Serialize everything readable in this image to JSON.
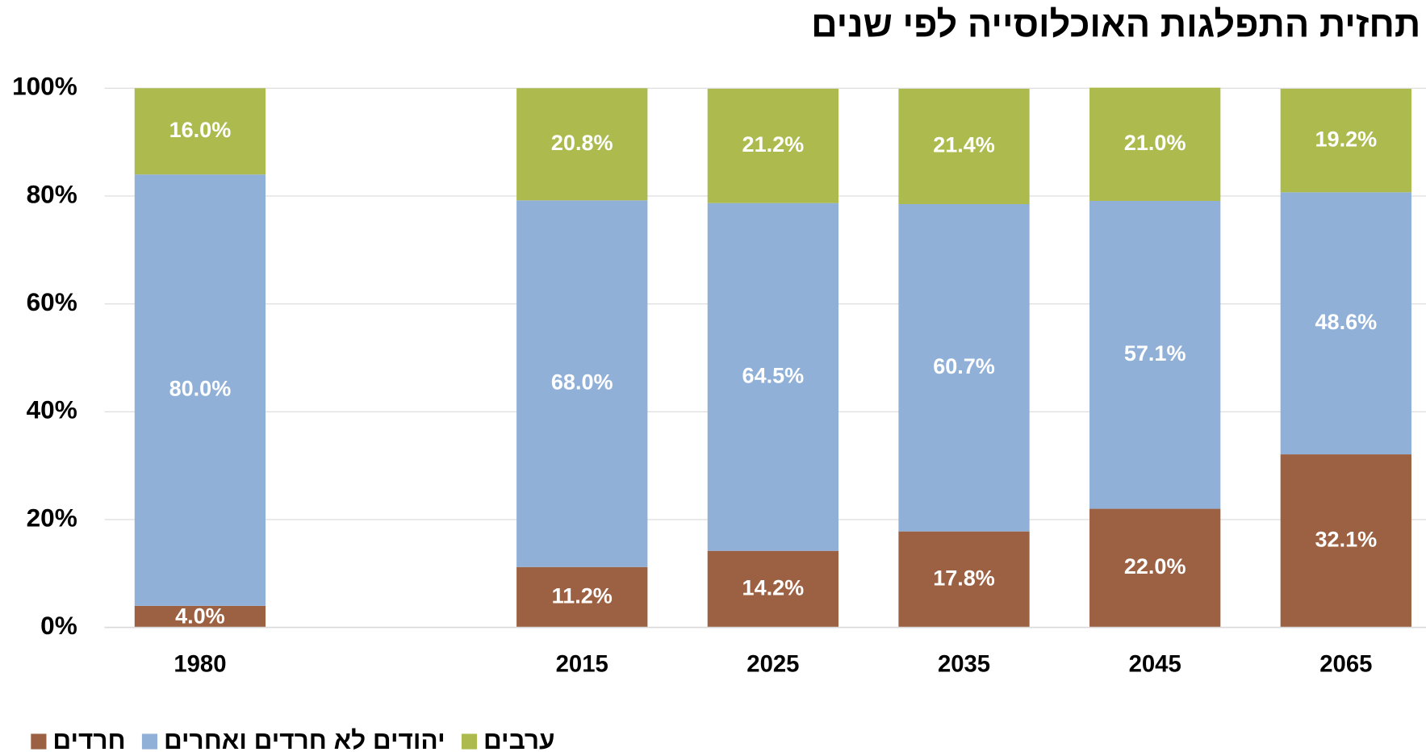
{
  "chart_data": {
    "type": "stacked_bar",
    "title": "תחזית התפלגות האוכלוסייה לפי שנים",
    "categories": [
      "1980",
      null,
      "2015",
      "2025",
      "2035",
      "2045",
      "2065"
    ],
    "series": [
      {
        "name": "חרדים",
        "color": "#9c6142",
        "values": [
          4.0,
          null,
          11.2,
          14.2,
          17.8,
          22.0,
          32.1
        ],
        "value_labels": [
          "4.0%",
          null,
          "11.2%",
          "14.2%",
          "17.8%",
          "22.0%",
          "32.1%"
        ]
      },
      {
        "name": "יהודים לא חרדים ואחרים",
        "color": "#90b0d7",
        "values": [
          80.0,
          null,
          68.0,
          64.5,
          60.7,
          57.1,
          48.6
        ],
        "value_labels": [
          "80.0%",
          null,
          "68.0%",
          "64.5%",
          "60.7%",
          "57.1%",
          "48.6%"
        ]
      },
      {
        "name": "ערבים",
        "color": "#adbb4e",
        "values": [
          16.0,
          null,
          20.8,
          21.2,
          21.4,
          21.0,
          19.2
        ],
        "value_labels": [
          "16.0%",
          null,
          "20.8%",
          "21.2%",
          "21.4%",
          "21.0%",
          "19.2%"
        ]
      }
    ],
    "ylim": [
      0,
      100
    ],
    "yticks": [
      {
        "value": 0,
        "label": "0%"
      },
      {
        "value": 20,
        "label": "20%"
      },
      {
        "value": 40,
        "label": "40%"
      },
      {
        "value": 60,
        "label": "60%"
      },
      {
        "value": 80,
        "label": "80%"
      },
      {
        "value": 100,
        "label": "100%"
      }
    ],
    "grid": true
  }
}
